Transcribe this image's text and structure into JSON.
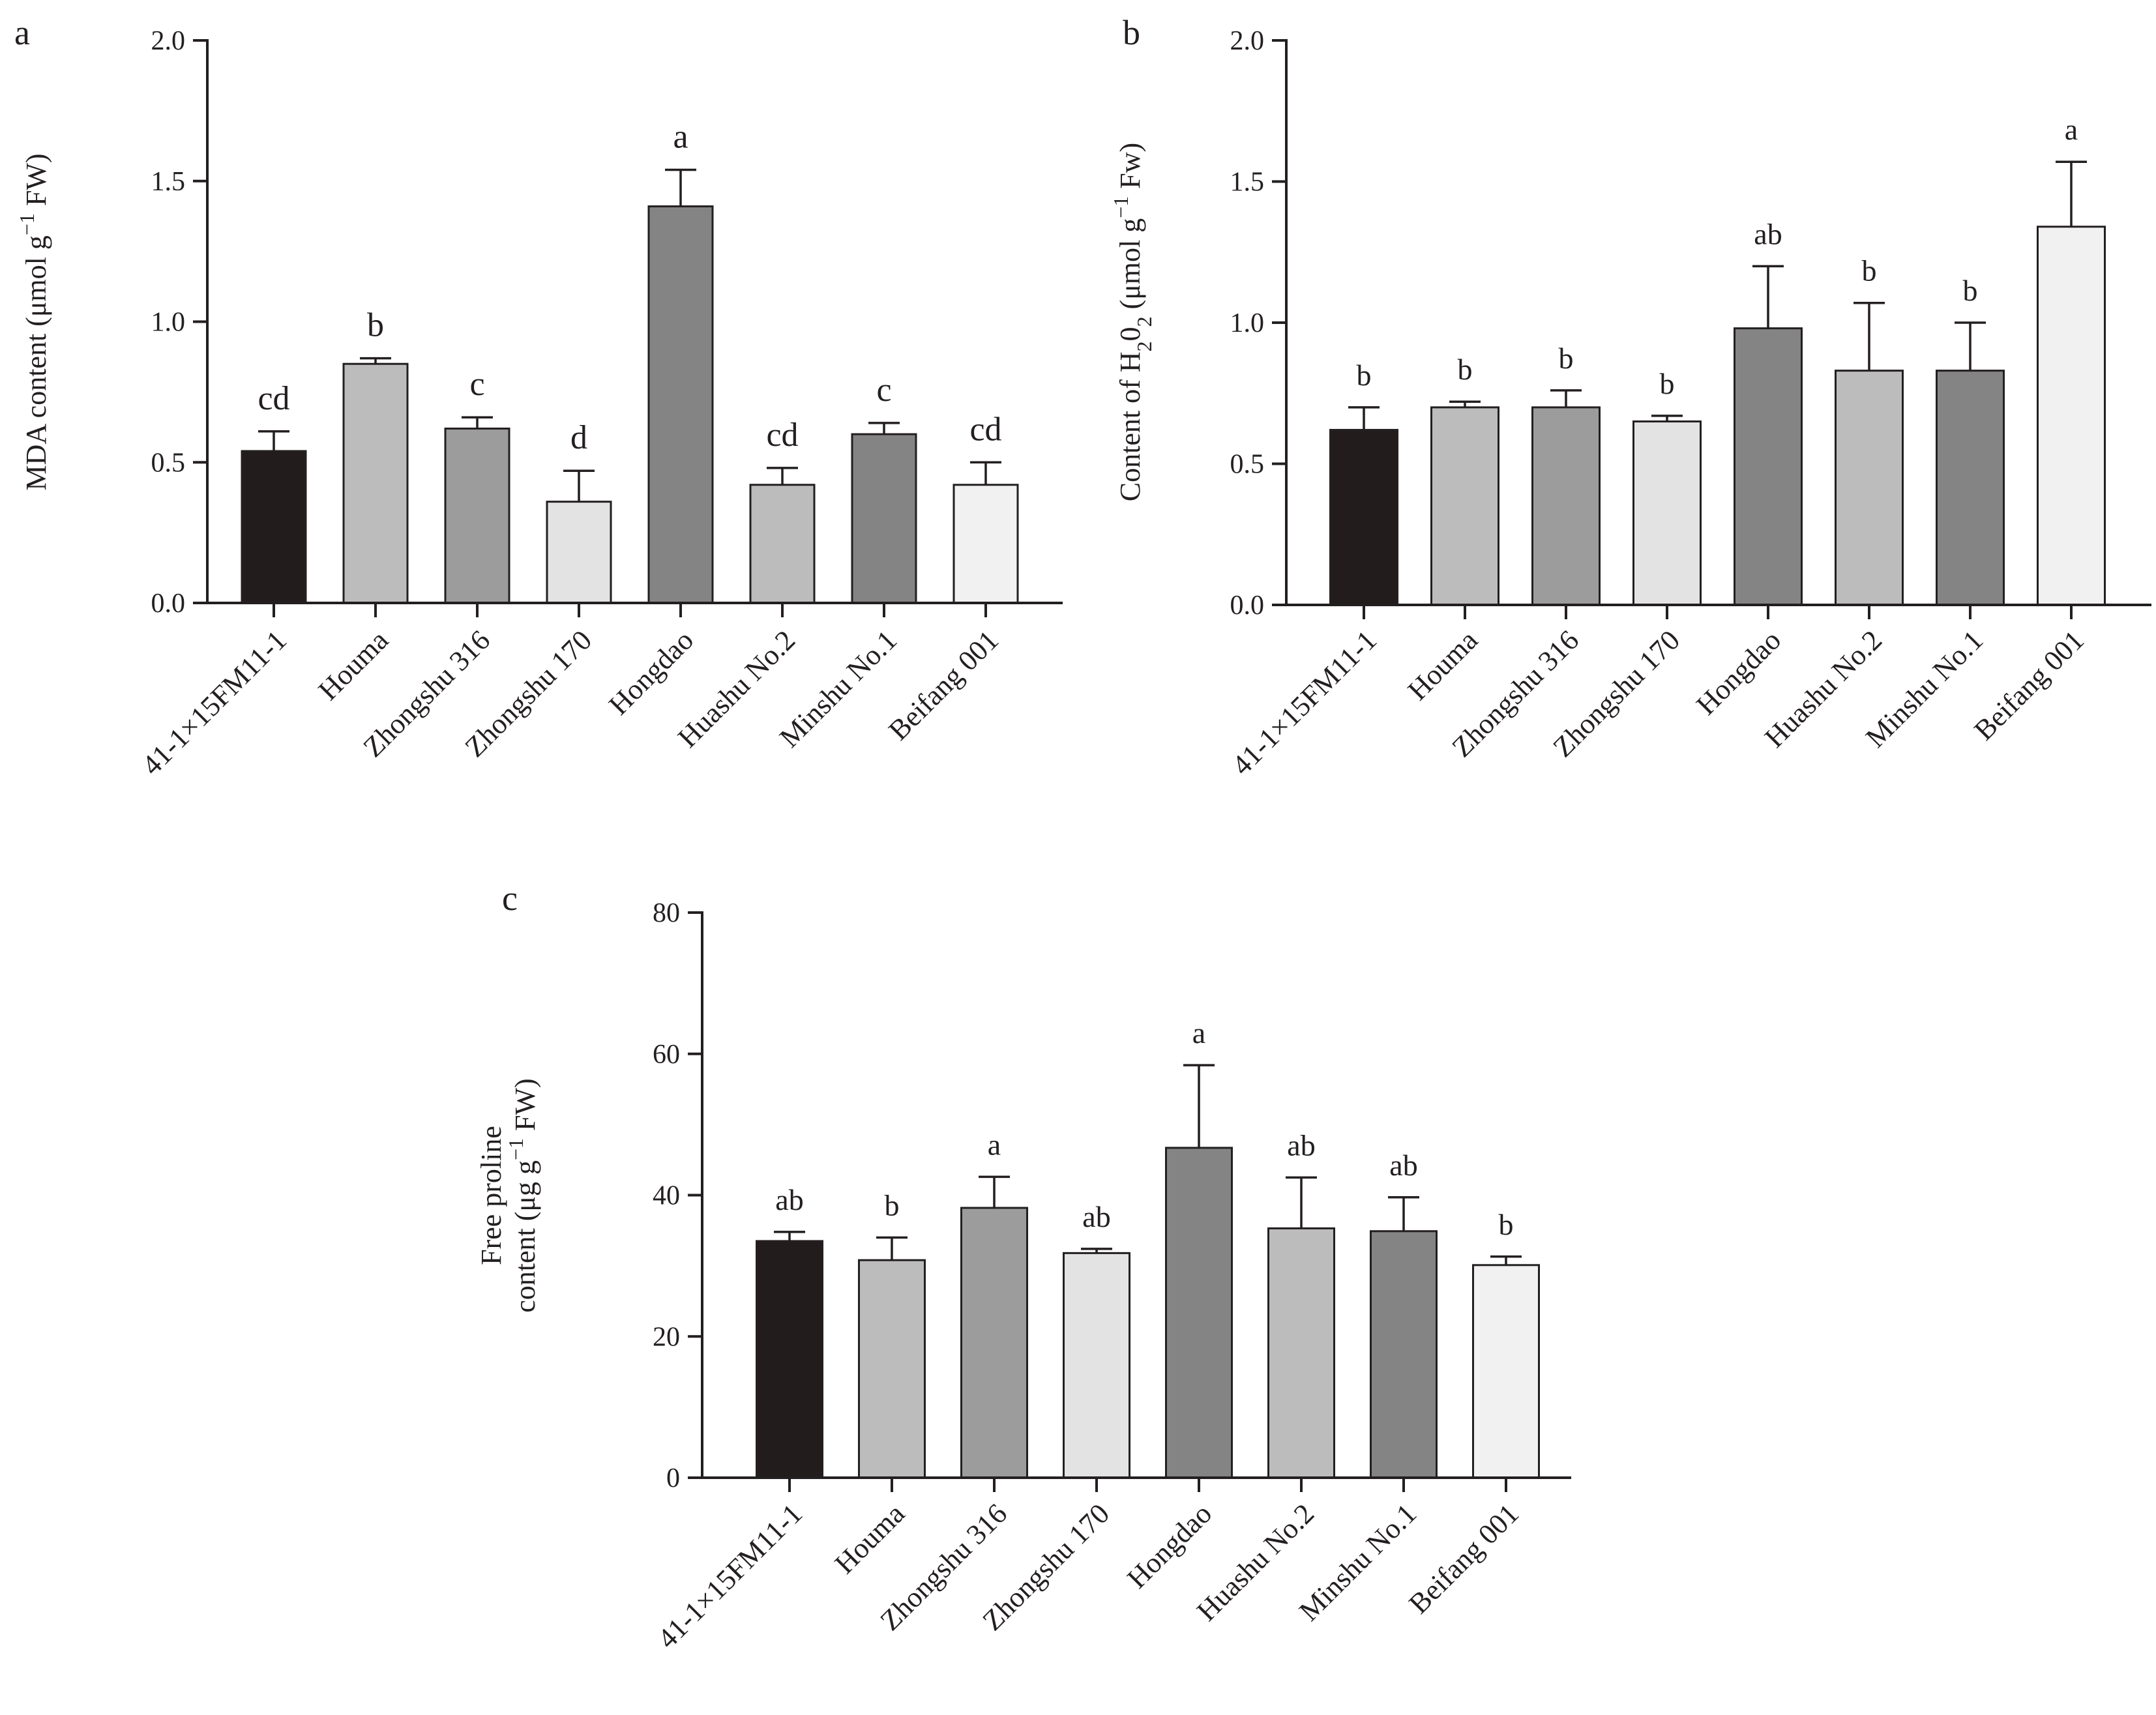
{
  "chart_data": [
    {
      "type": "bar",
      "panel": "a",
      "title": "",
      "ylabel": "MDA content (μmol g-1 FW)",
      "ylabel_parts": {
        "pre": "MDA content (μmol g",
        "sup": "−1",
        "post": " FW)"
      },
      "xlabel": "",
      "ylim": [
        0,
        2.0
      ],
      "yticks": [
        0.0,
        0.5,
        1.0,
        1.5,
        2.0
      ],
      "ytick_labels": [
        "0.0",
        "0.5",
        "1.0",
        "1.5",
        "2.0"
      ],
      "categories": [
        "41-1×15FM11-1",
        "Houma",
        "Zhongshu 316",
        "Zhongshu 170",
        "Hongdao",
        "Huashu No.2",
        "Minshu No.1",
        "Beifang 001"
      ],
      "values": [
        0.54,
        0.85,
        0.62,
        0.36,
        1.41,
        0.42,
        0.6,
        0.42
      ],
      "errors": [
        0.07,
        0.02,
        0.04,
        0.11,
        0.13,
        0.06,
        0.04,
        0.08
      ],
      "significance": [
        "cd",
        "b",
        "c",
        "d",
        "a",
        "cd",
        "c",
        "cd"
      ]
    },
    {
      "type": "bar",
      "panel": "b",
      "title": "",
      "ylabel": "Content of H2O2 (μmol g-1 Fw)",
      "ylabel_parts": {
        "pre": "Content of H",
        "sub1": "2",
        "mid": "0",
        "sub2": "2",
        "mid2": " (μmol g",
        "sup": "−1",
        "post": " Fw)"
      },
      "xlabel": "",
      "ylim": [
        0,
        2.0
      ],
      "yticks": [
        0.0,
        0.5,
        1.0,
        1.5,
        2.0
      ],
      "ytick_labels": [
        "0.0",
        "0.5",
        "1.0",
        "1.5",
        "2.0"
      ],
      "categories": [
        "41-1×15FM11-1",
        "Houma",
        "Zhongshu 316",
        "Zhongshu 170",
        "Hongdao",
        "Huashu No.2",
        "Minshu No.1",
        "Beifang 001"
      ],
      "values": [
        0.62,
        0.7,
        0.7,
        0.65,
        0.98,
        0.83,
        0.83,
        1.34
      ],
      "errors": [
        0.08,
        0.02,
        0.06,
        0.02,
        0.22,
        0.24,
        0.17,
        0.23
      ],
      "significance": [
        "b",
        "b",
        "b",
        "b",
        "ab",
        "b",
        "b",
        "a"
      ]
    },
    {
      "type": "bar",
      "panel": "c",
      "title": "",
      "ylabel": "Free proline content (μg g-1 FW)",
      "ylabel_line1": "Free proline",
      "ylabel_parts": {
        "pre": "content (μg g",
        "sup": "−1",
        "post": " FW)"
      },
      "xlabel": "",
      "ylim": [
        0,
        80
      ],
      "yticks": [
        0,
        20,
        40,
        60,
        80
      ],
      "ytick_labels": [
        "0",
        "20",
        "40",
        "60",
        "80"
      ],
      "categories": [
        "41-1×15FM11-1",
        "Houma",
        "Zhongshu 316",
        "Zhongshu 170",
        "Hongdao",
        "Huashu No.2",
        "Minshu No.1",
        "Beifang 001"
      ],
      "values": [
        33.5,
        30.8,
        38.2,
        31.8,
        46.7,
        35.3,
        34.9,
        30.1
      ],
      "errors": [
        1.3,
        3.2,
        4.4,
        0.6,
        11.7,
        7.2,
        4.8,
        1.2
      ],
      "significance": [
        "ab",
        "b",
        "a",
        "ab",
        "a",
        "ab",
        "ab",
        "b"
      ]
    }
  ],
  "bar_colors": [
    "#231c1c",
    "#bcbcbc",
    "#9c9c9c",
    "#e3e3e3",
    "#848484",
    "#bcbcbc",
    "#848484",
    "#f1f1f1"
  ],
  "axis_color": "#231f20"
}
